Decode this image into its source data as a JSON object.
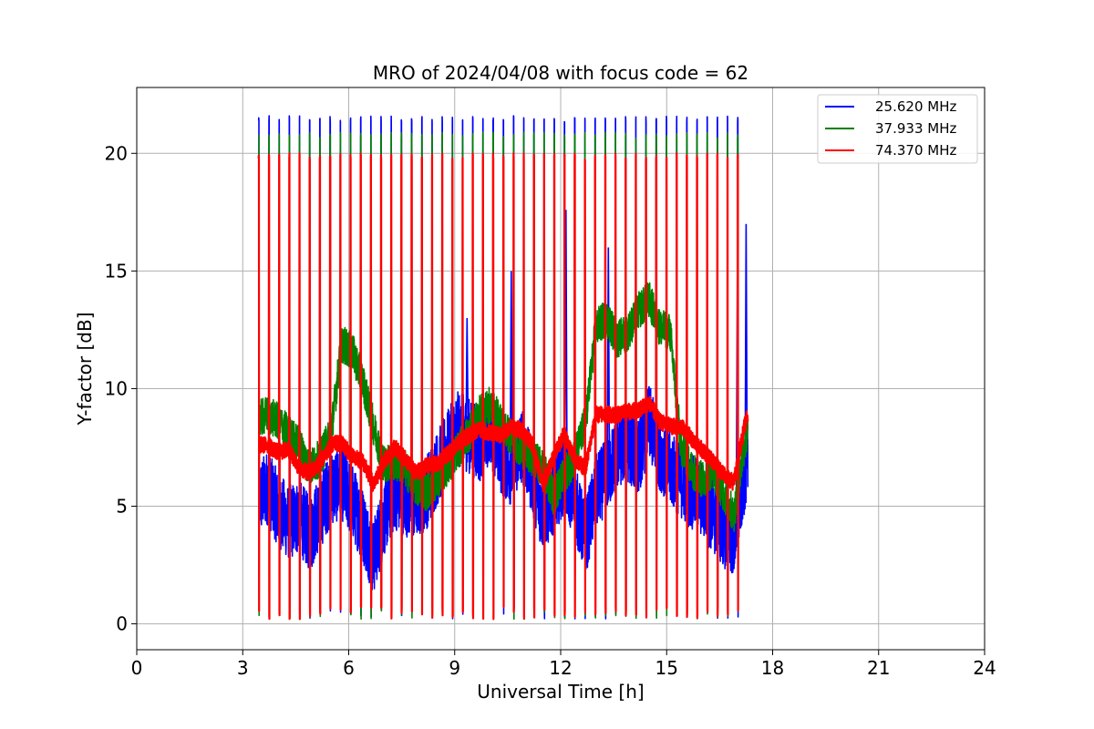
{
  "chart_data": {
    "type": "line",
    "title": "MRO of 2024/04/08 with focus code = 62",
    "xlabel": "Universal Time [h]",
    "ylabel": "Y-factor [dB]",
    "xlim": [
      0,
      24
    ],
    "ylim": [
      -1.1,
      22.8
    ],
    "xticks": [
      0,
      3,
      6,
      9,
      12,
      15,
      18,
      21,
      24
    ],
    "yticks": [
      0,
      5,
      10,
      15,
      20
    ],
    "grid": true,
    "legend_position": "top-right",
    "calibration": {
      "start_h": 3.45,
      "end_h": 17.3,
      "period_h": 0.2885,
      "peak_levels_db": {
        "25.620 MHz": 21.6,
        "37.933 MHz": 20.9,
        "74.370 MHz": 20.0
      },
      "floor_db": 0.2
    },
    "series": [
      {
        "name": "25.620 MHz",
        "color": "#0000ff",
        "x": [
          3.45,
          3.7,
          4.0,
          4.3,
          4.6,
          4.9,
          5.2,
          5.5,
          5.8,
          6.1,
          6.4,
          6.7,
          7.0,
          7.3,
          7.6,
          7.9,
          8.2,
          8.5,
          8.8,
          9.1,
          9.4,
          9.7,
          10.0,
          10.3,
          10.6,
          10.9,
          11.2,
          11.5,
          11.8,
          12.1,
          12.4,
          12.7,
          13.0,
          13.3,
          13.6,
          13.9,
          14.2,
          14.5,
          14.8,
          15.1,
          15.4,
          15.7,
          16.0,
          16.3,
          16.6,
          16.9,
          17.2,
          17.35
        ],
        "values": [
          5.3,
          5.8,
          4.9,
          4.3,
          4.6,
          3.8,
          4.8,
          5.8,
          6.0,
          5.2,
          4.2,
          2.8,
          4.5,
          5.6,
          5.3,
          5.2,
          5.6,
          6.6,
          7.5,
          8.3,
          8.0,
          7.6,
          8.4,
          7.1,
          6.6,
          7.6,
          6.2,
          4.6,
          5.4,
          6.3,
          5.2,
          3.6,
          5.6,
          6.3,
          7.3,
          7.6,
          7.1,
          8.6,
          7.3,
          6.6,
          6.1,
          5.6,
          5.3,
          4.6,
          4.0,
          3.6,
          6.3,
          7.2
        ],
        "spikes": [
          {
            "x": 12.15,
            "y": 17.6
          },
          {
            "x": 10.6,
            "y": 15.0
          },
          {
            "x": 13.35,
            "y": 16.0
          },
          {
            "x": 17.25,
            "y": 17.0
          },
          {
            "x": 17.0,
            "y": 14.8
          },
          {
            "x": 9.35,
            "y": 13.0
          }
        ]
      },
      {
        "name": "37.933 MHz",
        "color": "#008000",
        "x": [
          3.45,
          3.7,
          4.0,
          4.3,
          4.6,
          4.9,
          5.2,
          5.5,
          5.8,
          6.1,
          6.4,
          6.7,
          7.0,
          7.3,
          7.6,
          7.9,
          8.2,
          8.5,
          8.8,
          9.1,
          9.4,
          9.7,
          10.0,
          10.3,
          10.6,
          10.9,
          11.2,
          11.5,
          11.8,
          12.1,
          12.4,
          12.7,
          13.0,
          13.3,
          13.6,
          13.9,
          14.2,
          14.5,
          14.8,
          15.1,
          15.4,
          15.7,
          16.0,
          16.3,
          16.6,
          16.9,
          17.2,
          17.35
        ],
        "values": [
          8.7,
          8.9,
          8.6,
          8.1,
          7.6,
          6.6,
          7.1,
          8.1,
          11.9,
          11.6,
          10.3,
          8.4,
          6.8,
          6.9,
          6.6,
          5.8,
          5.6,
          6.1,
          6.7,
          7.4,
          8.1,
          8.9,
          9.3,
          8.6,
          7.9,
          7.4,
          7.1,
          6.6,
          5.4,
          6.3,
          7.1,
          8.6,
          12.6,
          13.0,
          12.1,
          12.4,
          13.3,
          13.8,
          12.6,
          12.4,
          7.6,
          6.6,
          6.1,
          6.6,
          5.6,
          4.6,
          7.6,
          8.3
        ]
      },
      {
        "name": "74.370 MHz",
        "color": "#ff0000",
        "x": [
          3.45,
          3.7,
          4.0,
          4.3,
          4.6,
          4.9,
          5.2,
          5.5,
          5.8,
          6.1,
          6.4,
          6.7,
          7.0,
          7.3,
          7.6,
          7.9,
          8.2,
          8.5,
          8.8,
          9.1,
          9.4,
          9.7,
          10.0,
          10.3,
          10.6,
          10.9,
          11.2,
          11.5,
          11.8,
          12.1,
          12.4,
          12.7,
          13.0,
          13.3,
          13.6,
          13.9,
          14.2,
          14.5,
          14.8,
          15.1,
          15.4,
          15.7,
          16.0,
          16.3,
          16.6,
          16.9,
          17.2,
          17.35
        ],
        "values": [
          7.6,
          7.6,
          7.3,
          7.4,
          6.6,
          6.4,
          6.9,
          7.6,
          7.7,
          7.1,
          6.9,
          5.9,
          6.9,
          7.5,
          7.0,
          6.4,
          6.7,
          6.8,
          7.2,
          7.7,
          8.0,
          8.3,
          8.1,
          8.0,
          8.4,
          8.2,
          7.6,
          5.9,
          7.1,
          8.1,
          7.0,
          6.6,
          8.9,
          8.9,
          8.9,
          9.0,
          9.1,
          9.4,
          8.6,
          8.4,
          8.4,
          7.9,
          7.4,
          6.9,
          6.4,
          6.0,
          8.4,
          9.1
        ]
      }
    ]
  }
}
